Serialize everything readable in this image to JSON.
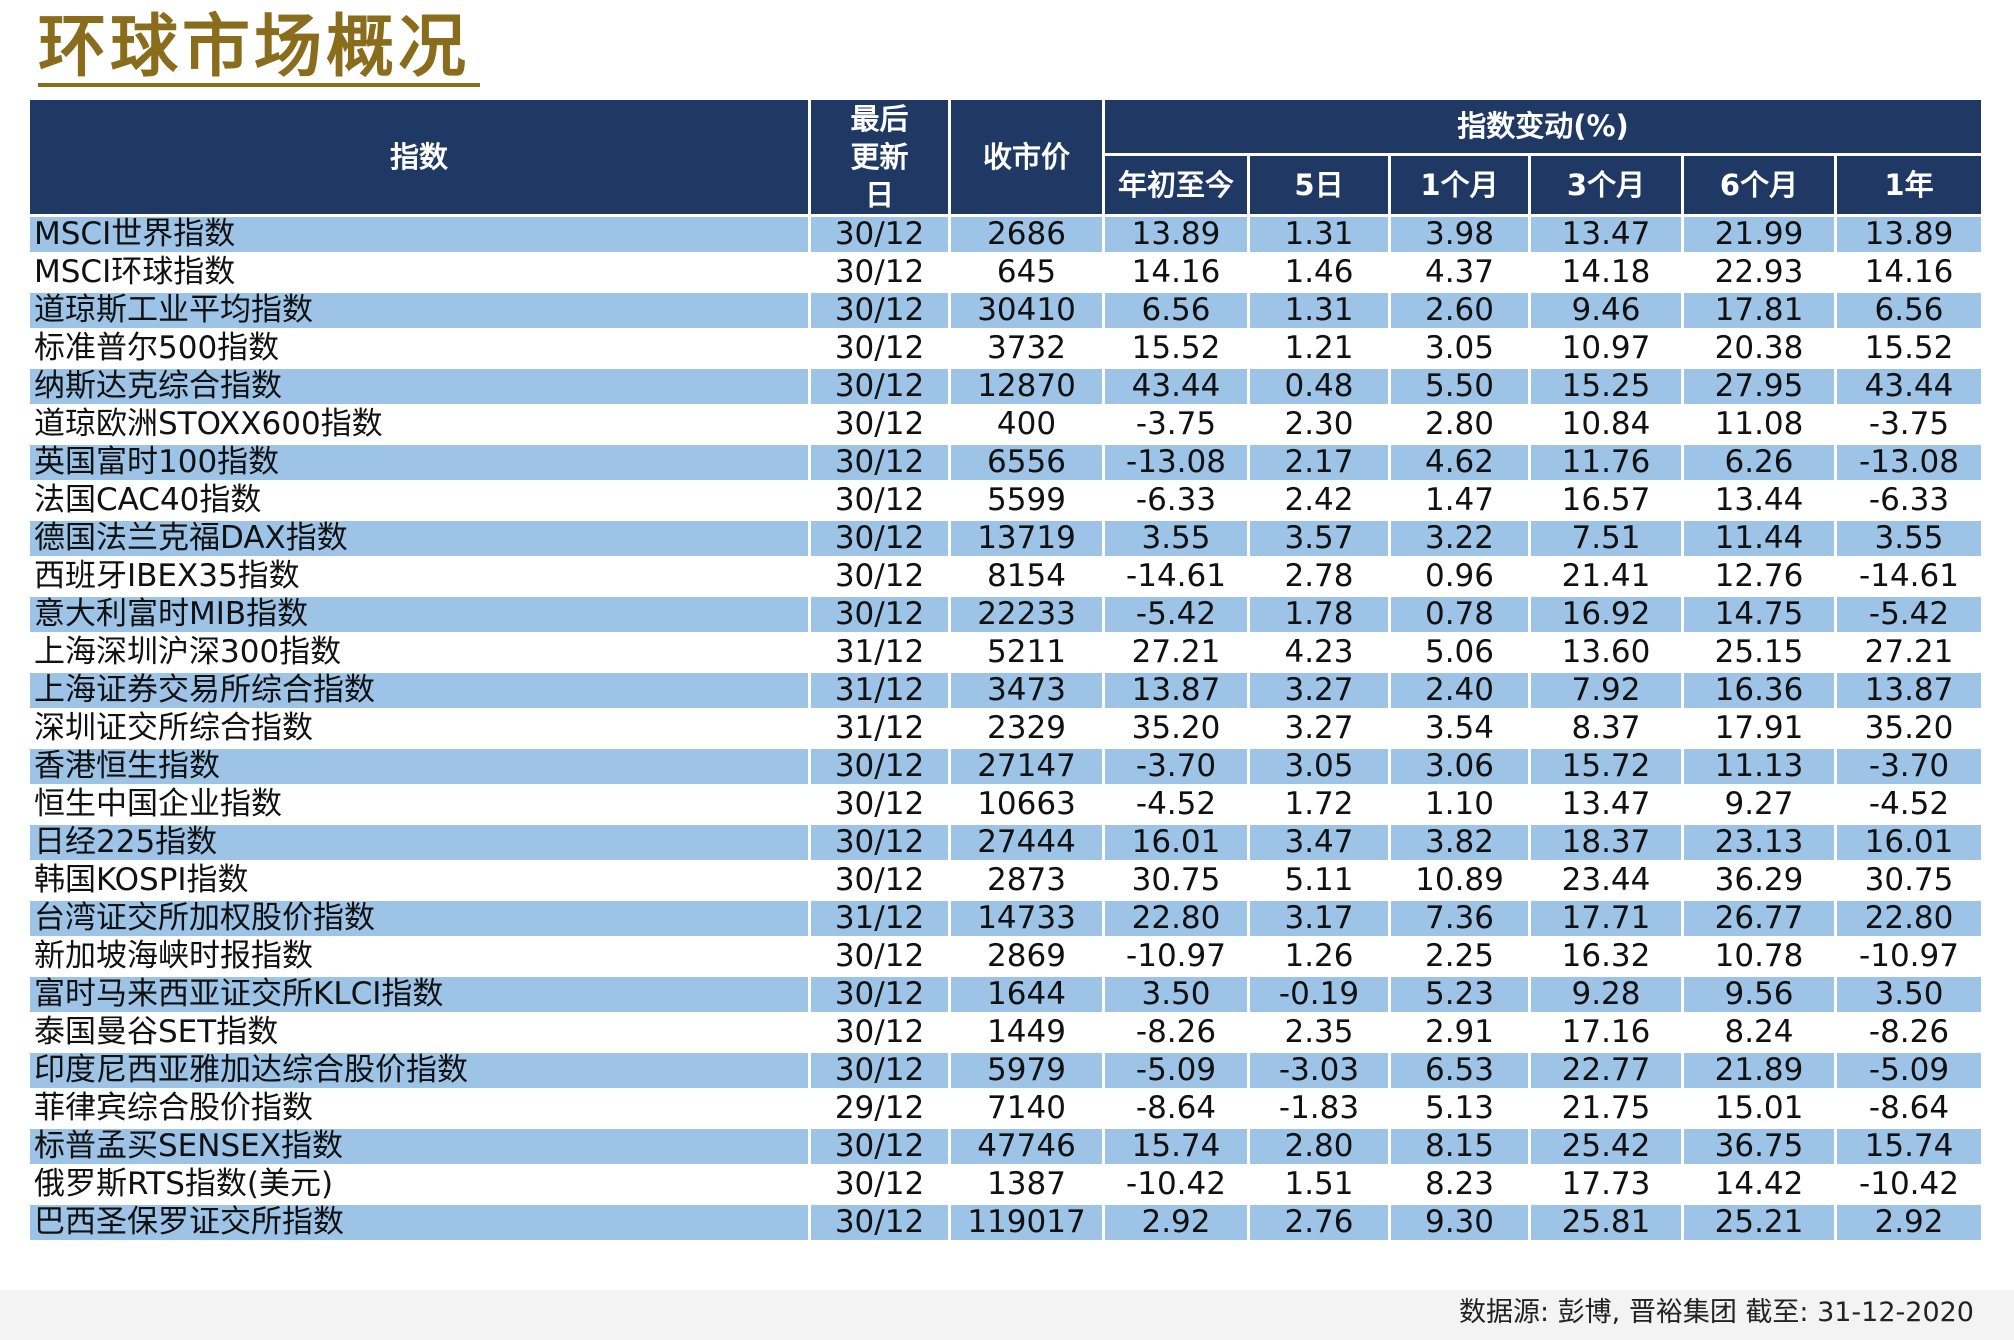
{
  "title": "环球市场概况",
  "header": {
    "index_label": "指数",
    "last_update_label": "最后更新日",
    "close_price_label": "收市价",
    "change_group_label": "指数变动(%)",
    "periods": [
      "年初至今",
      "5日",
      "1个月",
      "3个月",
      "6个月",
      "1年"
    ]
  },
  "rows": [
    {
      "name": "MSCI世界指数",
      "date": "30/12",
      "close": "2686",
      "ytd": "13.89",
      "d5": "1.31",
      "m1": "3.98",
      "m3": "13.47",
      "m6": "21.99",
      "y1": "13.89"
    },
    {
      "name": "MSCI环球指数",
      "date": "30/12",
      "close": "645",
      "ytd": "14.16",
      "d5": "1.46",
      "m1": "4.37",
      "m3": "14.18",
      "m6": "22.93",
      "y1": "14.16"
    },
    {
      "name": "道琼斯工业平均指数",
      "date": "30/12",
      "close": "30410",
      "ytd": "6.56",
      "d5": "1.31",
      "m1": "2.60",
      "m3": "9.46",
      "m6": "17.81",
      "y1": "6.56"
    },
    {
      "name": "标准普尔500指数",
      "date": "30/12",
      "close": "3732",
      "ytd": "15.52",
      "d5": "1.21",
      "m1": "3.05",
      "m3": "10.97",
      "m6": "20.38",
      "y1": "15.52"
    },
    {
      "name": "纳斯达克综合指数",
      "date": "30/12",
      "close": "12870",
      "ytd": "43.44",
      "d5": "0.48",
      "m1": "5.50",
      "m3": "15.25",
      "m6": "27.95",
      "y1": "43.44"
    },
    {
      "name": "道琼欧洲STOXX600指数",
      "date": "30/12",
      "close": "400",
      "ytd": "-3.75",
      "d5": "2.30",
      "m1": "2.80",
      "m3": "10.84",
      "m6": "11.08",
      "y1": "-3.75"
    },
    {
      "name": "英国富时100指数",
      "date": "30/12",
      "close": "6556",
      "ytd": "-13.08",
      "d5": "2.17",
      "m1": "4.62",
      "m3": "11.76",
      "m6": "6.26",
      "y1": "-13.08"
    },
    {
      "name": "法国CAC40指数",
      "date": "30/12",
      "close": "5599",
      "ytd": "-6.33",
      "d5": "2.42",
      "m1": "1.47",
      "m3": "16.57",
      "m6": "13.44",
      "y1": "-6.33"
    },
    {
      "name": "德国法兰克福DAX指数",
      "date": "30/12",
      "close": "13719",
      "ytd": "3.55",
      "d5": "3.57",
      "m1": "3.22",
      "m3": "7.51",
      "m6": "11.44",
      "y1": "3.55"
    },
    {
      "name": "西班牙IBEX35指数",
      "date": "30/12",
      "close": "8154",
      "ytd": "-14.61",
      "d5": "2.78",
      "m1": "0.96",
      "m3": "21.41",
      "m6": "12.76",
      "y1": "-14.61"
    },
    {
      "name": "意大利富时MIB指数",
      "date": "30/12",
      "close": "22233",
      "ytd": "-5.42",
      "d5": "1.78",
      "m1": "0.78",
      "m3": "16.92",
      "m6": "14.75",
      "y1": "-5.42"
    },
    {
      "name": "上海深圳沪深300指数",
      "date": "31/12",
      "close": "5211",
      "ytd": "27.21",
      "d5": "4.23",
      "m1": "5.06",
      "m3": "13.60",
      "m6": "25.15",
      "y1": "27.21"
    },
    {
      "name": "上海证券交易所综合指数",
      "date": "31/12",
      "close": "3473",
      "ytd": "13.87",
      "d5": "3.27",
      "m1": "2.40",
      "m3": "7.92",
      "m6": "16.36",
      "y1": "13.87"
    },
    {
      "name": "深圳证交所综合指数",
      "date": "31/12",
      "close": "2329",
      "ytd": "35.20",
      "d5": "3.27",
      "m1": "3.54",
      "m3": "8.37",
      "m6": "17.91",
      "y1": "35.20"
    },
    {
      "name": "香港恒生指数",
      "date": "30/12",
      "close": "27147",
      "ytd": "-3.70",
      "d5": "3.05",
      "m1": "3.06",
      "m3": "15.72",
      "m6": "11.13",
      "y1": "-3.70"
    },
    {
      "name": "恒生中国企业指数",
      "date": "30/12",
      "close": "10663",
      "ytd": "-4.52",
      "d5": "1.72",
      "m1": "1.10",
      "m3": "13.47",
      "m6": "9.27",
      "y1": "-4.52"
    },
    {
      "name": "日经225指数",
      "date": "30/12",
      "close": "27444",
      "ytd": "16.01",
      "d5": "3.47",
      "m1": "3.82",
      "m3": "18.37",
      "m6": "23.13",
      "y1": "16.01"
    },
    {
      "name": "韩国KOSPI指数",
      "date": "30/12",
      "close": "2873",
      "ytd": "30.75",
      "d5": "5.11",
      "m1": "10.89",
      "m3": "23.44",
      "m6": "36.29",
      "y1": "30.75"
    },
    {
      "name": "台湾证交所加权股价指数",
      "date": "31/12",
      "close": "14733",
      "ytd": "22.80",
      "d5": "3.17",
      "m1": "7.36",
      "m3": "17.71",
      "m6": "26.77",
      "y1": "22.80"
    },
    {
      "name": "新加坡海峡时报指数",
      "date": "30/12",
      "close": "2869",
      "ytd": "-10.97",
      "d5": "1.26",
      "m1": "2.25",
      "m3": "16.32",
      "m6": "10.78",
      "y1": "-10.97"
    },
    {
      "name": "富时马来西亚证交所KLCI指数",
      "date": "30/12",
      "close": "1644",
      "ytd": "3.50",
      "d5": "-0.19",
      "m1": "5.23",
      "m3": "9.28",
      "m6": "9.56",
      "y1": "3.50"
    },
    {
      "name": "泰国曼谷SET指数",
      "date": "30/12",
      "close": "1449",
      "ytd": "-8.26",
      "d5": "2.35",
      "m1": "2.91",
      "m3": "17.16",
      "m6": "8.24",
      "y1": "-8.26"
    },
    {
      "name": "印度尼西亚雅加达综合股价指数",
      "date": "30/12",
      "close": "5979",
      "ytd": "-5.09",
      "d5": "-3.03",
      "m1": "6.53",
      "m3": "22.77",
      "m6": "21.89",
      "y1": "-5.09"
    },
    {
      "name": "菲律宾综合股价指数",
      "date": "29/12",
      "close": "7140",
      "ytd": "-8.64",
      "d5": "-1.83",
      "m1": "5.13",
      "m3": "21.75",
      "m6": "15.01",
      "y1": "-8.64"
    },
    {
      "name": "标普孟买SENSEX指数",
      "date": "30/12",
      "close": "47746",
      "ytd": "15.74",
      "d5": "2.80",
      "m1": "8.15",
      "m3": "25.42",
      "m6": "36.75",
      "y1": "15.74"
    },
    {
      "name": "俄罗斯RTS指数(美元)",
      "date": "30/12",
      "close": "1387",
      "ytd": "-10.42",
      "d5": "1.51",
      "m1": "8.23",
      "m3": "17.73",
      "m6": "14.42",
      "y1": "-10.42"
    },
    {
      "name": "巴西圣保罗证交所指数",
      "date": "30/12",
      "close": "119017",
      "ytd": "2.92",
      "d5": "2.76",
      "m1": "9.30",
      "m3": "25.81",
      "m6": "25.21",
      "y1": "2.92"
    }
  ],
  "source": "数据源: 彭博, 晋裕集团 截至: 31-12-2020",
  "colors": {
    "title": "#8a6d1c",
    "header_bg": "#1f3864",
    "header_text": "#ffffff",
    "row_alt_bg": "#9dc3e6"
  }
}
